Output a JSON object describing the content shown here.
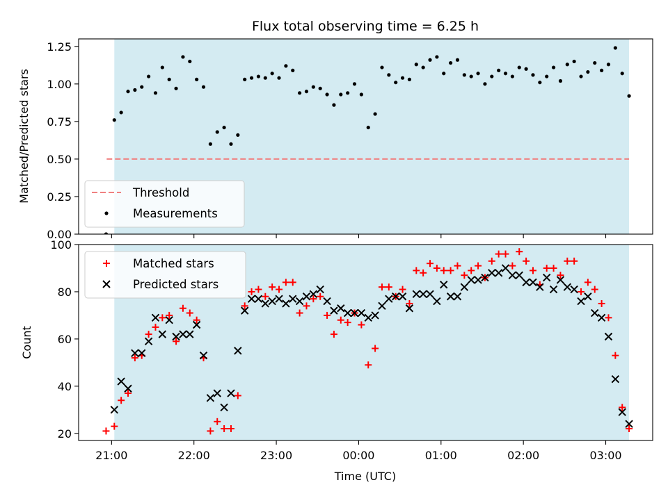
{
  "chart_data": [
    {
      "type": "scatter",
      "title": "Flux total observing time = 6.25 h",
      "ylabel": "Matched/Predicted stars",
      "xlabel": "",
      "ylim": [
        0,
        1.3
      ],
      "yticks": [
        0.0,
        0.25,
        0.5,
        0.75,
        1.0,
        1.25
      ],
      "ytick_labels": [
        "0.00",
        "0.25",
        "0.50",
        "0.75",
        "1.00",
        "1.25"
      ],
      "xlim_hours": [
        20.55,
        24.0,
        3.6
      ],
      "observing_span": {
        "start": "21:02",
        "end": "03:17",
        "color": "#add8e6"
      },
      "threshold": {
        "name": "Threshold",
        "value": 0.5,
        "color": "#f08080"
      },
      "grid": false,
      "legend_position": "lower-left",
      "legend": [
        "Threshold",
        "Measurements"
      ],
      "series": [
        {
          "name": "Measurements",
          "color": "#000000",
          "points": [
            [
              "20:56",
              0.0
            ],
            [
              "21:02",
              0.76
            ],
            [
              "21:07",
              0.81
            ],
            [
              "21:12",
              0.95
            ],
            [
              "21:17",
              0.96
            ],
            [
              "21:22",
              0.98
            ],
            [
              "21:27",
              1.05
            ],
            [
              "21:32",
              0.94
            ],
            [
              "21:37",
              1.11
            ],
            [
              "21:42",
              1.03
            ],
            [
              "21:47",
              0.97
            ],
            [
              "21:52",
              1.18
            ],
            [
              "21:57",
              1.15
            ],
            [
              "22:02",
              1.03
            ],
            [
              "22:07",
              0.98
            ],
            [
              "22:12",
              0.6
            ],
            [
              "22:17",
              0.68
            ],
            [
              "22:22",
              0.71
            ],
            [
              "22:27",
              0.6
            ],
            [
              "22:32",
              0.66
            ],
            [
              "22:37",
              1.03
            ],
            [
              "22:42",
              1.04
            ],
            [
              "22:47",
              1.05
            ],
            [
              "22:52",
              1.04
            ],
            [
              "22:57",
              1.07
            ],
            [
              "23:02",
              1.04
            ],
            [
              "23:07",
              1.12
            ],
            [
              "23:12",
              1.09
            ],
            [
              "23:17",
              0.94
            ],
            [
              "23:22",
              0.95
            ],
            [
              "23:27",
              0.98
            ],
            [
              "23:32",
              0.97
            ],
            [
              "23:37",
              0.93
            ],
            [
              "23:42",
              0.86
            ],
            [
              "23:47",
              0.93
            ],
            [
              "23:52",
              0.94
            ],
            [
              "23:57",
              1.0
            ],
            [
              "00:02",
              0.93
            ],
            [
              "00:07",
              0.71
            ],
            [
              "00:12",
              0.8
            ],
            [
              "00:17",
              1.11
            ],
            [
              "00:22",
              1.06
            ],
            [
              "00:27",
              1.01
            ],
            [
              "00:32",
              1.04
            ],
            [
              "00:37",
              1.03
            ],
            [
              "00:42",
              1.13
            ],
            [
              "00:47",
              1.11
            ],
            [
              "00:52",
              1.16
            ],
            [
              "00:57",
              1.18
            ],
            [
              "01:02",
              1.07
            ],
            [
              "01:07",
              1.14
            ],
            [
              "01:12",
              1.16
            ],
            [
              "01:17",
              1.06
            ],
            [
              "01:22",
              1.05
            ],
            [
              "01:27",
              1.07
            ],
            [
              "01:32",
              1.0
            ],
            [
              "01:37",
              1.05
            ],
            [
              "01:42",
              1.09
            ],
            [
              "01:47",
              1.07
            ],
            [
              "01:52",
              1.05
            ],
            [
              "01:57",
              1.11
            ],
            [
              "02:02",
              1.1
            ],
            [
              "02:07",
              1.06
            ],
            [
              "02:12",
              1.01
            ],
            [
              "02:17",
              1.05
            ],
            [
              "02:22",
              1.11
            ],
            [
              "02:27",
              1.02
            ],
            [
              "02:32",
              1.13
            ],
            [
              "02:37",
              1.15
            ],
            [
              "02:42",
              1.05
            ],
            [
              "02:47",
              1.08
            ],
            [
              "02:52",
              1.14
            ],
            [
              "02:57",
              1.09
            ],
            [
              "03:02",
              1.13
            ],
            [
              "03:07",
              1.24
            ],
            [
              "03:12",
              1.07
            ],
            [
              "03:17",
              0.92
            ]
          ]
        }
      ]
    },
    {
      "type": "scatter",
      "title": "",
      "xlabel": "Time (UTC)",
      "ylabel": "Count",
      "ylim": [
        17,
        100
      ],
      "yticks": [
        20,
        40,
        60,
        80,
        100
      ],
      "ytick_labels": [
        "20",
        "40",
        "60",
        "80",
        "100"
      ],
      "xticks": [
        "21:00",
        "22:00",
        "23:00",
        "00:00",
        "01:00",
        "02:00",
        "03:00"
      ],
      "observing_span": {
        "start": "21:02",
        "end": "03:17",
        "color": "#add8e6"
      },
      "grid": false,
      "legend_position": "upper-left",
      "legend": [
        "Matched stars",
        "Predicted stars"
      ],
      "series": [
        {
          "name": "Matched stars",
          "color": "#ff0000",
          "marker": "plus",
          "points": [
            [
              "20:56",
              21
            ],
            [
              "21:02",
              23
            ],
            [
              "21:07",
              34
            ],
            [
              "21:12",
              37
            ],
            [
              "21:17",
              52
            ],
            [
              "21:22",
              53
            ],
            [
              "21:27",
              62
            ],
            [
              "21:32",
              65
            ],
            [
              "21:37",
              69
            ],
            [
              "21:42",
              70
            ],
            [
              "21:47",
              59
            ],
            [
              "21:52",
              73
            ],
            [
              "21:57",
              71
            ],
            [
              "22:02",
              68
            ],
            [
              "22:07",
              52
            ],
            [
              "22:12",
              21
            ],
            [
              "22:17",
              25
            ],
            [
              "22:22",
              22
            ],
            [
              "22:27",
              22
            ],
            [
              "22:32",
              36
            ],
            [
              "22:37",
              74
            ],
            [
              "22:42",
              80
            ],
            [
              "22:47",
              81
            ],
            [
              "22:52",
              78
            ],
            [
              "22:57",
              82
            ],
            [
              "23:02",
              81
            ],
            [
              "23:07",
              84
            ],
            [
              "23:12",
              84
            ],
            [
              "23:17",
              71
            ],
            [
              "23:22",
              74
            ],
            [
              "23:27",
              77
            ],
            [
              "23:32",
              78
            ],
            [
              "23:37",
              70
            ],
            [
              "23:42",
              62
            ],
            [
              "23:47",
              68
            ],
            [
              "23:52",
              67
            ],
            [
              "23:57",
              71
            ],
            [
              "00:02",
              66
            ],
            [
              "00:07",
              49
            ],
            [
              "00:12",
              56
            ],
            [
              "00:17",
              82
            ],
            [
              "00:22",
              82
            ],
            [
              "00:27",
              78
            ],
            [
              "00:32",
              81
            ],
            [
              "00:37",
              75
            ],
            [
              "00:42",
              89
            ],
            [
              "00:47",
              88
            ],
            [
              "00:52",
              92
            ],
            [
              "00:57",
              90
            ],
            [
              "01:02",
              89
            ],
            [
              "01:07",
              89
            ],
            [
              "01:12",
              91
            ],
            [
              "01:17",
              87
            ],
            [
              "01:22",
              89
            ],
            [
              "01:27",
              91
            ],
            [
              "01:32",
              86
            ],
            [
              "01:37",
              93
            ],
            [
              "01:42",
              96
            ],
            [
              "01:47",
              96
            ],
            [
              "01:52",
              91
            ],
            [
              "01:57",
              97
            ],
            [
              "02:02",
              93
            ],
            [
              "02:07",
              89
            ],
            [
              "02:12",
              83
            ],
            [
              "02:17",
              90
            ],
            [
              "02:22",
              90
            ],
            [
              "02:27",
              87
            ],
            [
              "02:32",
              93
            ],
            [
              "02:37",
              93
            ],
            [
              "02:42",
              80
            ],
            [
              "02:47",
              84
            ],
            [
              "02:52",
              81
            ],
            [
              "02:57",
              75
            ],
            [
              "03:02",
              69
            ],
            [
              "03:07",
              53
            ],
            [
              "03:12",
              31
            ],
            [
              "03:17",
              22
            ]
          ]
        },
        {
          "name": "Predicted stars",
          "color": "#000000",
          "marker": "x",
          "points": [
            [
              "21:02",
              30
            ],
            [
              "21:07",
              42
            ],
            [
              "21:12",
              39
            ],
            [
              "21:17",
              54
            ],
            [
              "21:22",
              54
            ],
            [
              "21:27",
              59
            ],
            [
              "21:32",
              69
            ],
            [
              "21:37",
              62
            ],
            [
              "21:42",
              68
            ],
            [
              "21:47",
              61
            ],
            [
              "21:52",
              62
            ],
            [
              "21:57",
              62
            ],
            [
              "22:02",
              66
            ],
            [
              "22:07",
              53
            ],
            [
              "22:12",
              35
            ],
            [
              "22:17",
              37
            ],
            [
              "22:22",
              31
            ],
            [
              "22:27",
              37
            ],
            [
              "22:32",
              55
            ],
            [
              "22:37",
              72
            ],
            [
              "22:42",
              77
            ],
            [
              "22:47",
              77
            ],
            [
              "22:52",
              75
            ],
            [
              "22:57",
              76
            ],
            [
              "23:02",
              77
            ],
            [
              "23:07",
              75
            ],
            [
              "23:12",
              77
            ],
            [
              "23:17",
              76
            ],
            [
              "23:22",
              78
            ],
            [
              "23:27",
              79
            ],
            [
              "23:32",
              81
            ],
            [
              "23:37",
              76
            ],
            [
              "23:42",
              72
            ],
            [
              "23:47",
              73
            ],
            [
              "23:52",
              71
            ],
            [
              "23:57",
              71
            ],
            [
              "00:02",
              71
            ],
            [
              "00:07",
              69
            ],
            [
              "00:12",
              70
            ],
            [
              "00:17",
              74
            ],
            [
              "00:22",
              77
            ],
            [
              "00:27",
              78
            ],
            [
              "00:32",
              78
            ],
            [
              "00:37",
              73
            ],
            [
              "00:42",
              79
            ],
            [
              "00:47",
              79
            ],
            [
              "00:52",
              79
            ],
            [
              "00:57",
              76
            ],
            [
              "01:02",
              83
            ],
            [
              "01:07",
              78
            ],
            [
              "01:12",
              78
            ],
            [
              "01:17",
              82
            ],
            [
              "01:22",
              85
            ],
            [
              "01:27",
              85
            ],
            [
              "01:32",
              86
            ],
            [
              "01:37",
              88
            ],
            [
              "01:42",
              88
            ],
            [
              "01:47",
              90
            ],
            [
              "01:52",
              87
            ],
            [
              "01:57",
              87
            ],
            [
              "02:02",
              84
            ],
            [
              "02:07",
              84
            ],
            [
              "02:12",
              82
            ],
            [
              "02:17",
              86
            ],
            [
              "02:22",
              81
            ],
            [
              "02:27",
              85
            ],
            [
              "02:32",
              82
            ],
            [
              "02:37",
              81
            ],
            [
              "02:42",
              76
            ],
            [
              "02:47",
              78
            ],
            [
              "02:52",
              71
            ],
            [
              "02:57",
              69
            ],
            [
              "03:02",
              61
            ],
            [
              "03:07",
              43
            ],
            [
              "03:12",
              29
            ],
            [
              "03:17",
              24
            ]
          ]
        }
      ]
    }
  ]
}
